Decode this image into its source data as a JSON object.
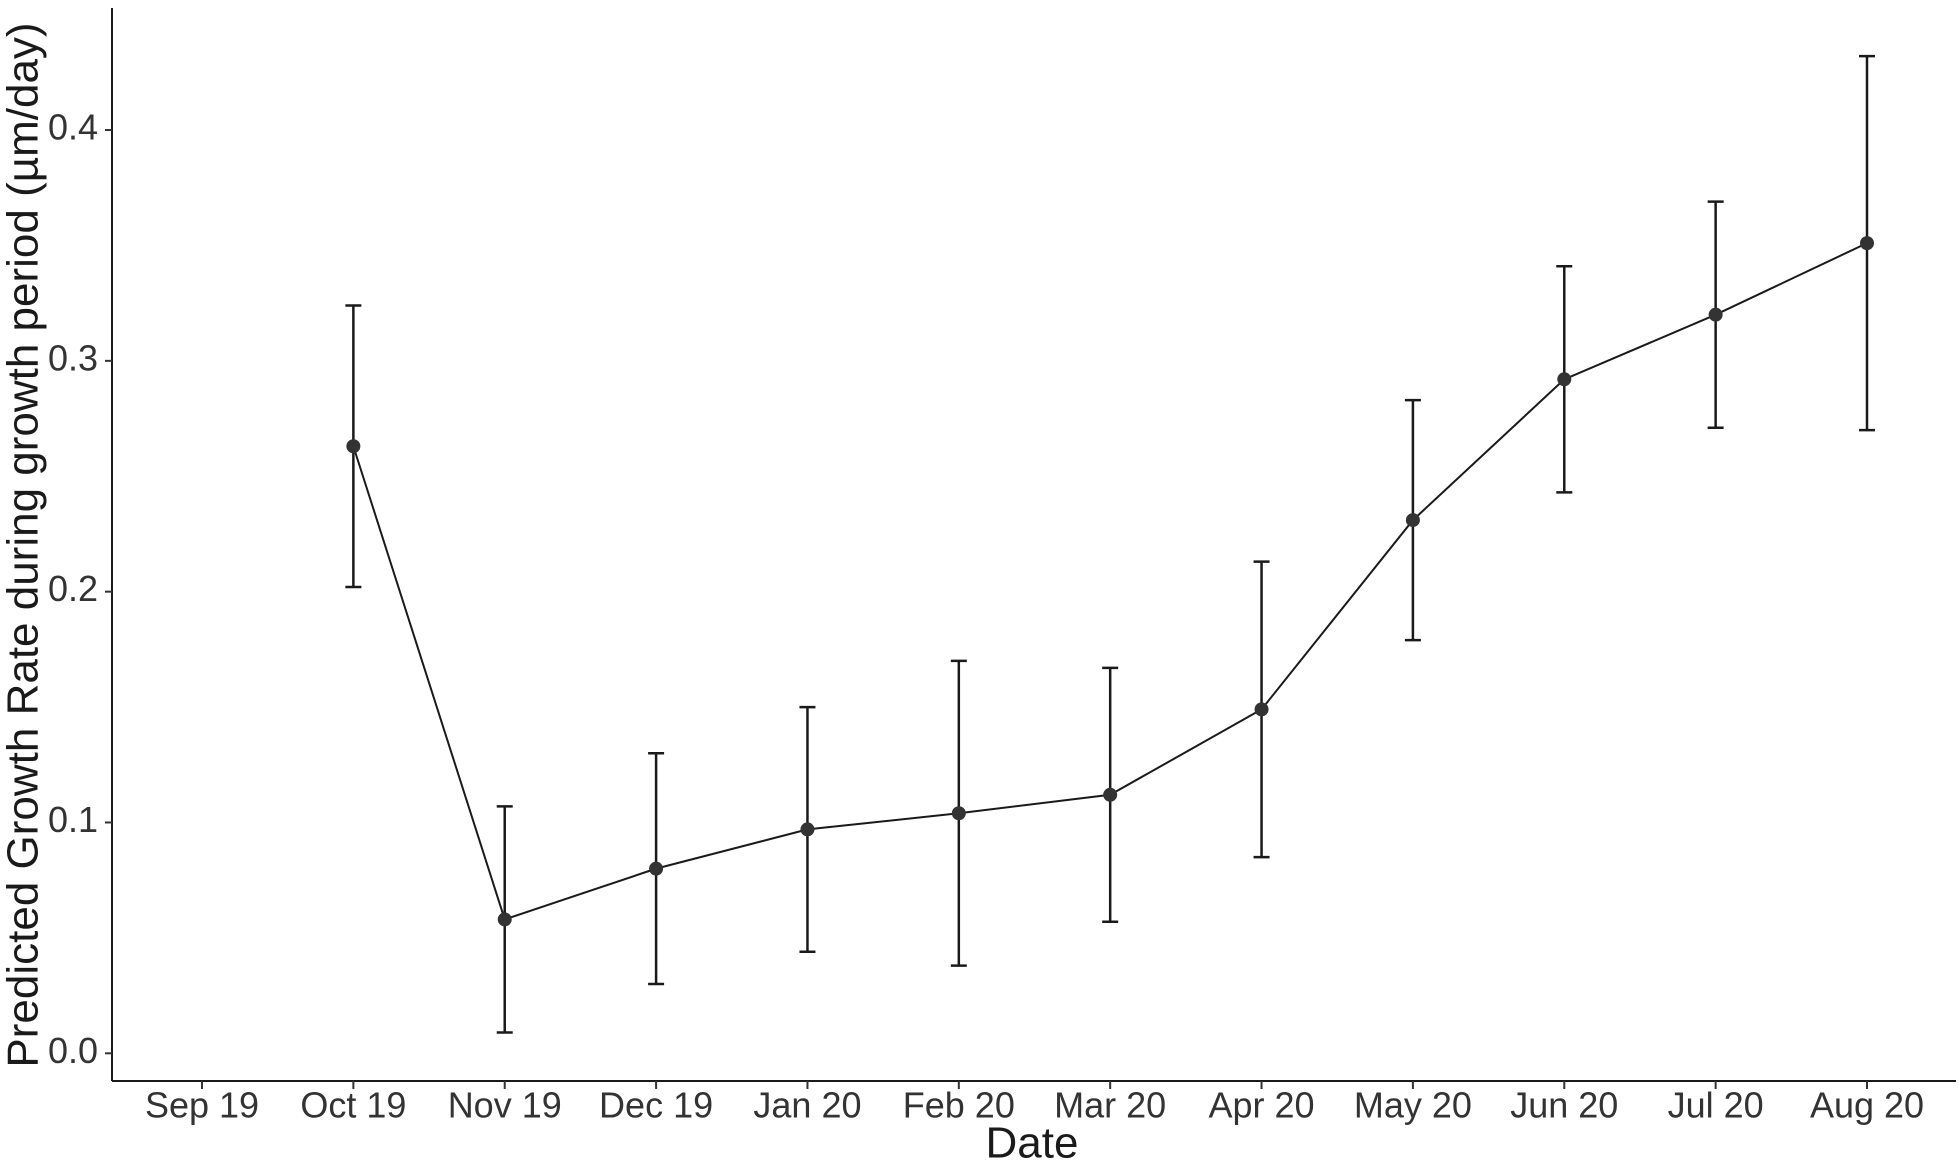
{
  "chart_data": {
    "type": "line",
    "x_label": "Date",
    "y_label": "Predicted Growth Rate during growth period (µm/day)",
    "categories": [
      "Sep 19",
      "Oct 19",
      "Nov 19",
      "Dec 19",
      "Jan 20",
      "Feb 20",
      "Mar 20",
      "Apr 20",
      "May 20",
      "Jun 20",
      "Jul 20",
      "Aug 20"
    ],
    "values": [
      null,
      0.263,
      0.058,
      0.08,
      0.097,
      0.104,
      0.112,
      0.149,
      0.231,
      0.292,
      0.32,
      0.351
    ],
    "errors": [
      null,
      0.061,
      0.049,
      0.05,
      0.053,
      0.066,
      0.055,
      0.064,
      0.052,
      0.049,
      0.049,
      0.081
    ],
    "color": "#1a1a1a",
    "ylim": [
      -0.012,
      0.452
    ],
    "yticks": [
      {
        "value": 0,
        "label": "0.0"
      },
      0.1,
      0.2,
      0.3,
      0.4
    ],
    "grid": false
  }
}
